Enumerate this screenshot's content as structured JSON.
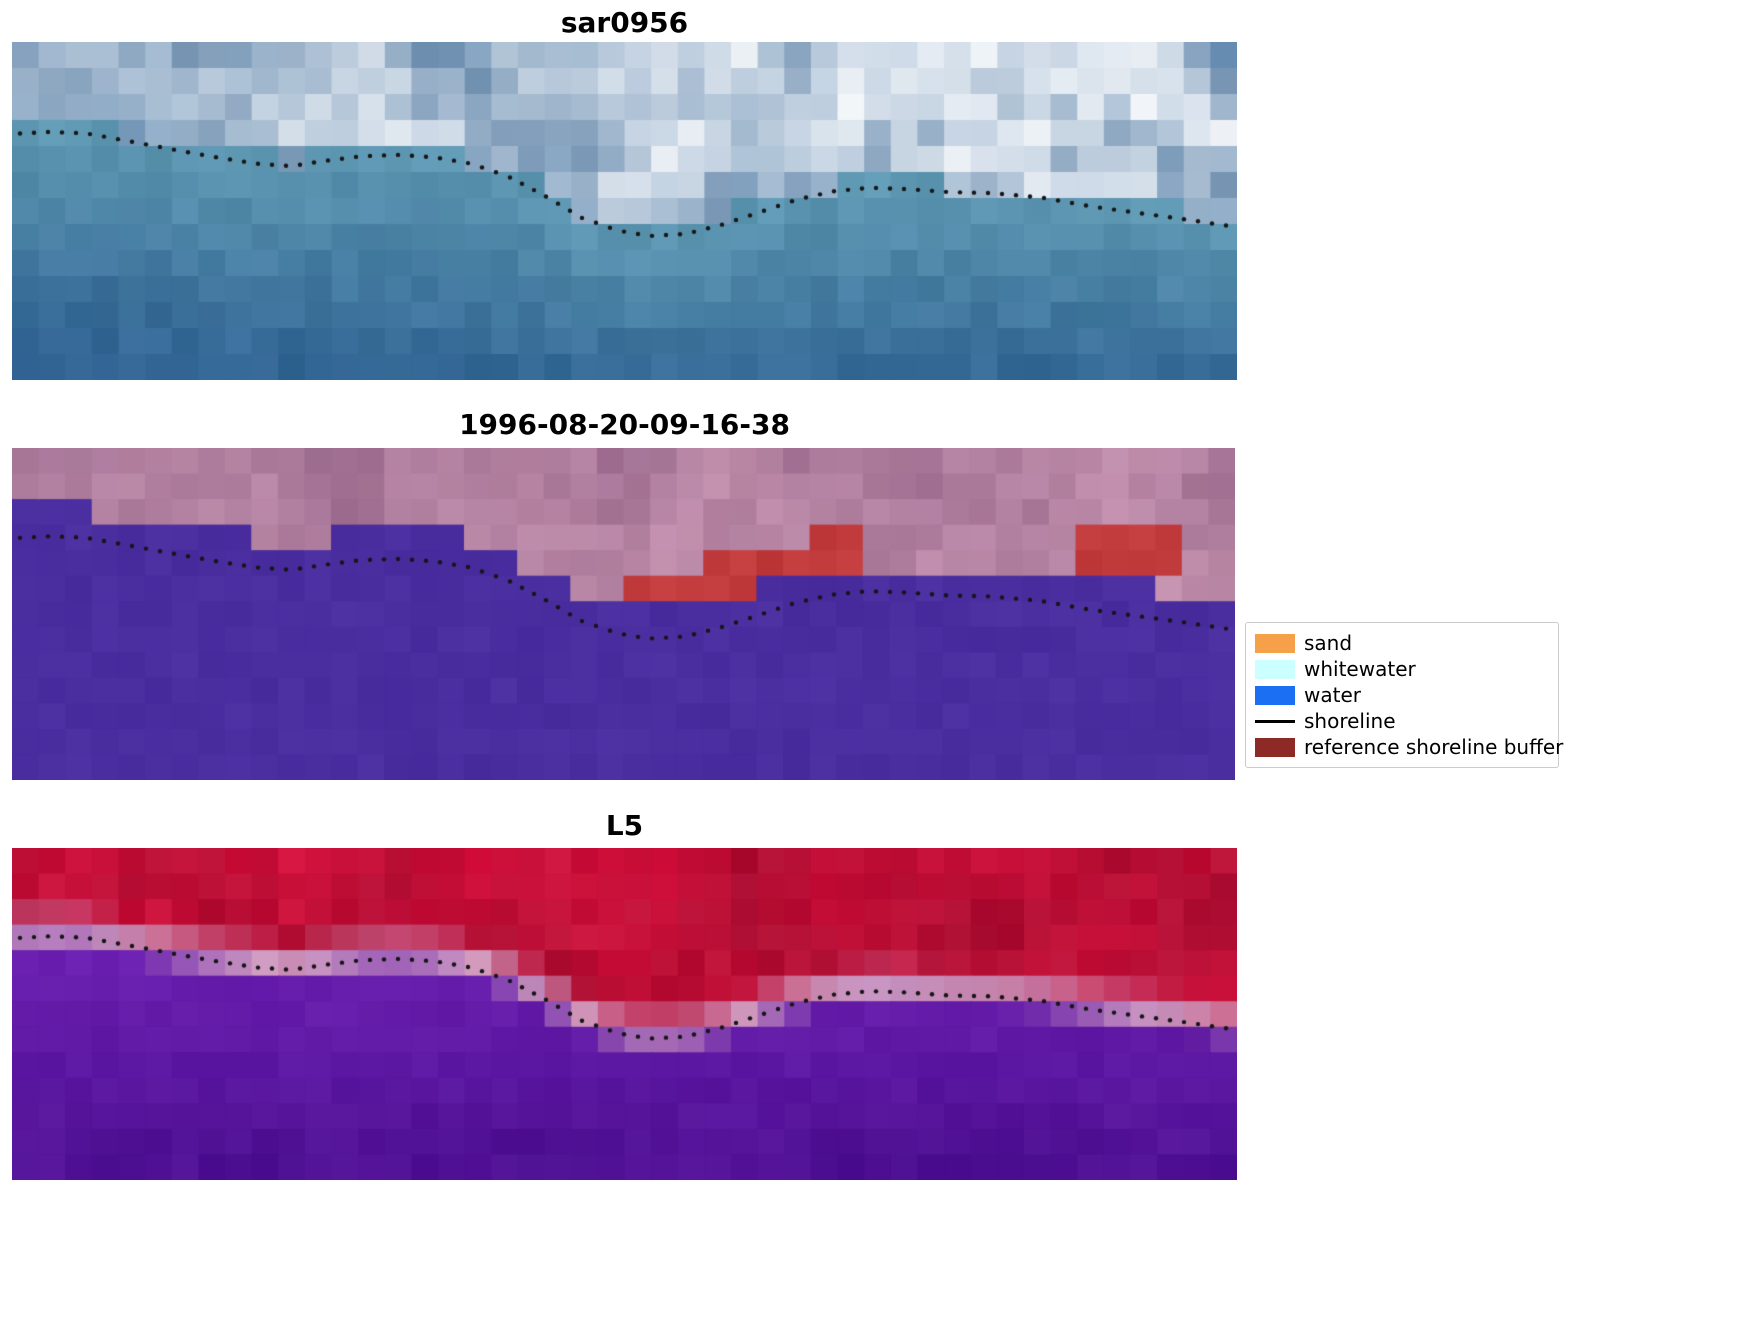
{
  "figure": {
    "panels": [
      {
        "title": "sar0956"
      },
      {
        "title": "1996-08-20-09-16-38"
      },
      {
        "title": "L5"
      }
    ]
  },
  "legend": {
    "items": [
      {
        "label": "sand",
        "swatch": "#f7a04a",
        "kind": "patch"
      },
      {
        "label": "whitewater",
        "swatch": "#ccffff",
        "kind": "patch"
      },
      {
        "label": "water",
        "swatch": "#1a6ff2",
        "kind": "patch"
      },
      {
        "label": "shoreline",
        "swatch": "#000000",
        "kind": "line"
      },
      {
        "label": "reference shoreline buffer",
        "swatch": "#8e2a26",
        "kind": "patch"
      }
    ]
  },
  "chart_data": {
    "type": "line",
    "title_panels": [
      "sar0956",
      "1996-08-20-09-16-38",
      "L5"
    ],
    "classes": [
      "sand",
      "whitewater",
      "water",
      "shoreline",
      "reference shoreline buffer"
    ],
    "shoreline": {
      "style": "dotted",
      "color": "#161616",
      "points_normalized": [
        [
          0.0,
          0.272
        ],
        [
          0.03,
          0.266
        ],
        [
          0.06,
          0.27
        ],
        [
          0.095,
          0.293
        ],
        [
          0.13,
          0.317
        ],
        [
          0.165,
          0.34
        ],
        [
          0.2,
          0.36
        ],
        [
          0.228,
          0.367
        ],
        [
          0.255,
          0.352
        ],
        [
          0.285,
          0.338
        ],
        [
          0.315,
          0.334
        ],
        [
          0.345,
          0.341
        ],
        [
          0.375,
          0.36
        ],
        [
          0.405,
          0.398
        ],
        [
          0.435,
          0.455
        ],
        [
          0.465,
          0.52
        ],
        [
          0.495,
          0.558
        ],
        [
          0.52,
          0.574
        ],
        [
          0.55,
          0.568
        ],
        [
          0.58,
          0.54
        ],
        [
          0.61,
          0.504
        ],
        [
          0.64,
          0.467
        ],
        [
          0.67,
          0.442
        ],
        [
          0.7,
          0.431
        ],
        [
          0.73,
          0.435
        ],
        [
          0.765,
          0.444
        ],
        [
          0.8,
          0.447
        ],
        [
          0.84,
          0.46
        ],
        [
          0.88,
          0.486
        ],
        [
          0.92,
          0.506
        ],
        [
          0.96,
          0.526
        ],
        [
          1.0,
          0.548
        ]
      ]
    },
    "panels": [
      {
        "kind": "satellite-sar",
        "title": "sar0956",
        "palette": {
          "water_top": "#5d97b2",
          "water_bottom": "#2e6292",
          "cloud": "#f3f6f9",
          "cloud_tint": "#c3d2e2",
          "slate": "#5e7aa4",
          "deep_corner": "#27568a"
        }
      },
      {
        "kind": "classification",
        "title": "1996-08-20-09-16-38",
        "palette": {
          "water_class": "#4a2ea0",
          "land_dark": "#8a5b82",
          "land_light": "#c794b0",
          "buffer_red": "#c03a3c"
        },
        "buffer_patches": [
          {
            "x0": 0.5,
            "x1": 0.565,
            "y0": 0.37,
            "y1": 0.56
          },
          {
            "x0": 0.565,
            "x1": 0.7,
            "y0": 0.33,
            "y1": 0.47
          },
          {
            "x0": 0.655,
            "x1": 0.697,
            "y0": 0.21,
            "y1": 0.4
          },
          {
            "x0": 0.875,
            "x1": 0.955,
            "y0": 0.255,
            "y1": 0.375
          }
        ]
      },
      {
        "kind": "satellite-l5",
        "title": "L5",
        "palette": {
          "red_dark": "#9d0c2e",
          "red_bright": "#d8123e",
          "pink_band": "#d8a6c8",
          "pink_alt": "#c08ab8",
          "purple_base": "#6a1fb0",
          "purple_dark": "#450b89"
        }
      }
    ]
  }
}
